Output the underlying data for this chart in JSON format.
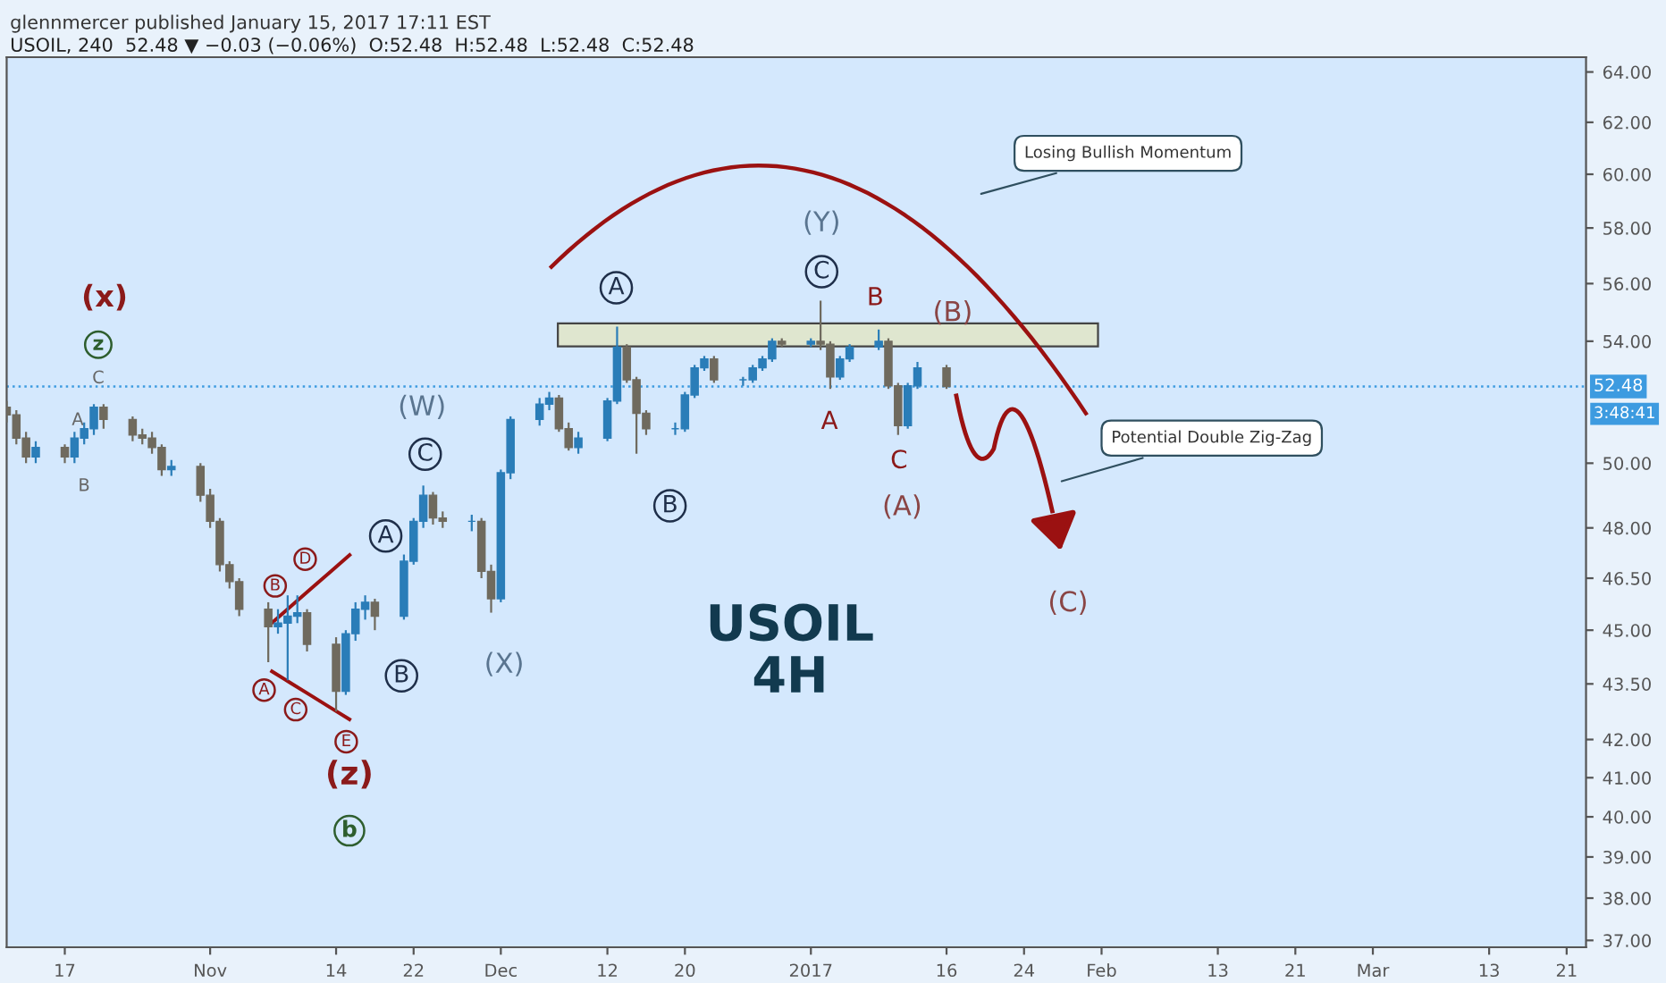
{
  "chart_data": {
    "type": "candlestick",
    "title": "glennmercer published January 15, 2017 17:11 EST",
    "subtitle": "USOIL, 240  52.48 ▼ −0.03 (−0.06%)  O:52.48  H:52.48  L:52.48  C:52.48",
    "x": [
      "2016-10-11",
      "2016-10-12",
      "2016-10-13",
      "2016-10-14",
      "2016-10-17",
      "2016-10-18",
      "2016-10-19",
      "2016-10-20",
      "2016-10-21",
      "2016-10-24",
      "2016-10-25",
      "2016-10-26",
      "2016-10-27",
      "2016-10-28",
      "2016-10-31",
      "2016-11-01",
      "2016-11-02",
      "2016-11-03",
      "2016-11-04",
      "2016-11-07",
      "2016-11-08",
      "2016-11-09",
      "2016-11-10",
      "2016-11-11",
      "2016-11-14",
      "2016-11-15",
      "2016-11-16",
      "2016-11-17",
      "2016-11-18",
      "2016-11-21",
      "2016-11-22",
      "2016-11-23",
      "2016-11-24",
      "2016-11-25",
      "2016-11-28",
      "2016-11-29",
      "2016-11-30",
      "2016-12-01",
      "2016-12-02",
      "2016-12-05",
      "2016-12-06",
      "2016-12-07",
      "2016-12-08",
      "2016-12-09",
      "2016-12-12",
      "2016-12-13",
      "2016-12-14",
      "2016-12-15",
      "2016-12-16",
      "2016-12-19",
      "2016-12-20",
      "2016-12-21",
      "2016-12-22",
      "2016-12-23",
      "2016-12-26",
      "2016-12-27",
      "2016-12-28",
      "2016-12-29",
      "2016-12-30",
      "2017-01-02",
      "2017-01-03",
      "2017-01-04",
      "2017-01-05",
      "2017-01-06",
      "2017-01-09",
      "2017-01-10",
      "2017-01-11",
      "2017-01-12",
      "2017-01-13",
      "2017-01-16"
    ],
    "ohlc": [
      [
        51.8,
        52.0,
        51.3,
        51.55
      ],
      [
        51.55,
        51.7,
        50.6,
        50.8
      ],
      [
        50.8,
        51.0,
        50.0,
        50.2
      ],
      [
        50.2,
        50.7,
        50.0,
        50.5
      ],
      [
        50.5,
        50.6,
        50.0,
        50.2
      ],
      [
        50.2,
        51.0,
        50.0,
        50.8
      ],
      [
        50.8,
        51.3,
        50.6,
        51.1
      ],
      [
        51.1,
        51.9,
        50.9,
        51.8
      ],
      [
        51.8,
        51.9,
        51.1,
        51.4
      ],
      [
        51.4,
        51.5,
        50.7,
        50.9
      ],
      [
        50.9,
        51.1,
        50.6,
        50.8
      ],
      [
        50.8,
        51.0,
        50.3,
        50.5
      ],
      [
        50.5,
        50.6,
        49.6,
        49.8
      ],
      [
        49.8,
        50.1,
        49.6,
        49.9
      ],
      [
        49.9,
        50.0,
        48.8,
        49.0
      ],
      [
        49.0,
        49.2,
        48.0,
        48.2
      ],
      [
        48.2,
        48.3,
        46.7,
        46.9
      ],
      [
        46.9,
        47.0,
        46.2,
        46.4
      ],
      [
        46.4,
        46.5,
        45.4,
        45.6
      ],
      [
        45.6,
        45.8,
        44.1,
        45.1
      ],
      [
        45.1,
        45.6,
        44.9,
        45.2
      ],
      [
        45.2,
        46.0,
        43.6,
        45.4
      ],
      [
        45.4,
        46.0,
        45.2,
        45.5
      ],
      [
        45.5,
        45.6,
        44.4,
        44.6
      ],
      [
        44.6,
        44.8,
        42.75,
        43.3
      ],
      [
        43.3,
        45.0,
        43.2,
        44.9
      ],
      [
        44.9,
        45.8,
        44.7,
        45.6
      ],
      [
        45.6,
        46.0,
        45.3,
        45.8
      ],
      [
        45.8,
        45.9,
        45.0,
        45.4
      ],
      [
        45.4,
        47.2,
        45.3,
        47.0
      ],
      [
        47.0,
        48.3,
        46.9,
        48.2
      ],
      [
        48.2,
        49.3,
        48.0,
        49.0
      ],
      [
        49.0,
        49.1,
        48.1,
        48.3
      ],
      [
        48.3,
        48.5,
        48.0,
        48.2
      ],
      [
        48.2,
        48.4,
        47.9,
        48.2
      ],
      [
        48.2,
        48.3,
        46.5,
        46.7
      ],
      [
        46.7,
        46.9,
        45.5,
        45.9
      ],
      [
        45.9,
        49.8,
        45.8,
        49.7
      ],
      [
        49.7,
        51.5,
        49.5,
        51.4
      ],
      [
        51.4,
        52.1,
        51.2,
        51.9
      ],
      [
        51.9,
        52.3,
        51.7,
        52.1
      ],
      [
        52.1,
        52.2,
        51.0,
        51.1
      ],
      [
        51.1,
        51.3,
        50.4,
        50.5
      ],
      [
        50.5,
        51.0,
        50.3,
        50.8
      ],
      [
        50.8,
        52.1,
        50.7,
        52.0
      ],
      [
        52.0,
        54.5,
        51.9,
        53.8
      ],
      [
        53.8,
        53.9,
        52.6,
        52.7
      ],
      [
        52.7,
        52.8,
        50.3,
        51.6
      ],
      [
        51.6,
        51.7,
        50.9,
        51.1
      ],
      [
        51.1,
        51.3,
        50.9,
        51.1
      ],
      [
        51.1,
        52.3,
        51.0,
        52.2
      ],
      [
        52.2,
        53.2,
        52.1,
        53.1
      ],
      [
        53.1,
        53.5,
        53.0,
        53.4
      ],
      [
        53.4,
        53.5,
        52.6,
        52.7
      ],
      [
        52.7,
        52.8,
        52.5,
        52.7
      ],
      [
        52.7,
        53.2,
        52.6,
        53.1
      ],
      [
        53.1,
        53.5,
        53.0,
        53.4
      ],
      [
        53.4,
        54.1,
        53.3,
        54.0
      ],
      [
        54.0,
        54.1,
        53.8,
        53.9
      ],
      [
        53.9,
        54.1,
        53.8,
        54.0
      ],
      [
        54.0,
        55.4,
        53.7,
        53.9
      ],
      [
        53.9,
        54.0,
        52.4,
        52.8
      ],
      [
        52.8,
        53.5,
        52.7,
        53.4
      ],
      [
        53.4,
        53.9,
        53.3,
        53.8
      ],
      [
        53.8,
        54.4,
        53.7,
        54.0
      ],
      [
        54.0,
        54.1,
        52.4,
        52.5
      ],
      [
        52.5,
        52.6,
        50.9,
        51.2
      ],
      [
        51.2,
        52.6,
        51.1,
        52.5
      ],
      [
        52.5,
        53.3,
        52.4,
        53.1
      ],
      [
        53.1,
        53.2,
        52.4,
        52.48
      ]
    ],
    "xlim": [
      "2016-10-11",
      "2017-03-23"
    ],
    "xticks": [
      {
        "value": "2016-10-17",
        "label": "17"
      },
      {
        "value": "2016-11-01",
        "label": "Nov"
      },
      {
        "value": "2016-11-14",
        "label": "14"
      },
      {
        "value": "2016-11-22",
        "label": "22"
      },
      {
        "value": "2016-12-01",
        "label": "Dec"
      },
      {
        "value": "2016-12-12",
        "label": "12"
      },
      {
        "value": "2016-12-20",
        "label": "20"
      },
      {
        "value": "2017-01-02",
        "label": "2017"
      },
      {
        "value": "2017-01-16",
        "label": "16"
      },
      {
        "value": "2017-01-24",
        "label": "24"
      },
      {
        "value": "2017-02-01",
        "label": "Feb"
      },
      {
        "value": "2017-02-13",
        "label": "13"
      },
      {
        "value": "2017-02-21",
        "label": "21"
      },
      {
        "value": "2017-03-01",
        "label": "Mar"
      },
      {
        "value": "2017-03-13",
        "label": "13"
      },
      {
        "value": "2017-03-21",
        "label": "21"
      }
    ],
    "log": true,
    "ylim": [
      36.84,
      64.6
    ],
    "yticks": [
      {
        "value": 37,
        "label": "37.00"
      },
      {
        "value": 38,
        "label": "38.00"
      },
      {
        "value": 39,
        "label": "39.00"
      },
      {
        "value": 40,
        "label": "40.00"
      },
      {
        "value": 41,
        "label": "41.00"
      },
      {
        "value": 42,
        "label": "42.00"
      },
      {
        "value": 43.5,
        "label": "43.50"
      },
      {
        "value": 45,
        "label": "45.00"
      },
      {
        "value": 46.5,
        "label": "46.50"
      },
      {
        "value": 48,
        "label": "48.00"
      },
      {
        "value": 50,
        "label": "50.00"
      },
      {
        "value": 54,
        "label": "54.00"
      },
      {
        "value": 56,
        "label": "56.00"
      },
      {
        "value": 58,
        "label": "58.00"
      },
      {
        "value": 60,
        "label": "60.00"
      },
      {
        "value": 62,
        "label": "62.00"
      },
      {
        "value": 64,
        "label": "64.00"
      }
    ],
    "ref_lines": [
      {
        "axis": "y",
        "value": 52.48,
        "label": "52.48",
        "color": "#3d9be0",
        "line_style": "dotted"
      }
    ],
    "annotations": [
      "(x)",
      "z",
      "C",
      "A",
      "B",
      "B",
      "D",
      "A",
      "C",
      "E",
      "(z)",
      "b",
      "A",
      "B",
      "C",
      "(W)",
      "(X)",
      "A",
      "B",
      "C",
      "(Y)",
      "B",
      "A",
      "C",
      "(A)",
      "(B)",
      "(C)",
      "Losing Bullish Momentum",
      "Potential Double Zig-Zag",
      "USOIL\n4H",
      "3:48:41"
    ]
  }
}
